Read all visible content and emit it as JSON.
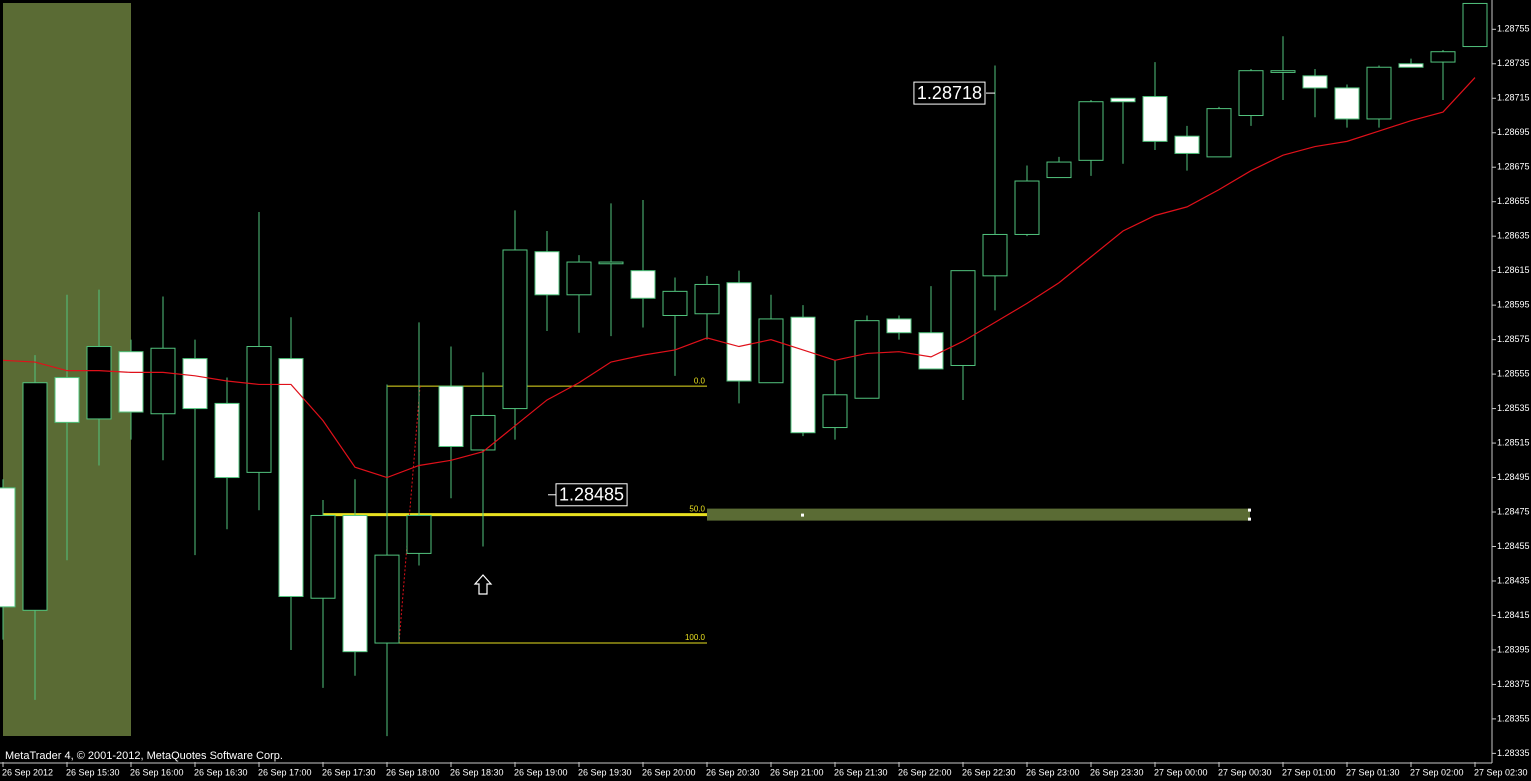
{
  "chart_data": {
    "type": "candlestick",
    "categories": [
      "26 Sep 2012",
      null,
      "26 Sep 15:30",
      null,
      "26 Sep 16:00",
      null,
      "26 Sep 16:30",
      null,
      "26 Sep 17:00",
      null,
      "26 Sep 17:30",
      null,
      "26 Sep 18:00",
      null,
      "26 Sep 18:30",
      null,
      "26 Sep 19:00",
      null,
      "26 Sep 19:30",
      null,
      "26 Sep 20:00",
      null,
      "26 Sep 20:30",
      null,
      "26 Sep 21:00",
      null,
      "26 Sep 21:30",
      null,
      "26 Sep 22:00",
      null,
      "26 Sep 22:30",
      null,
      "26 Sep 23:00",
      null,
      "26 Sep 23:30",
      null,
      "27 Sep 00:00",
      null,
      "27 Sep 00:30",
      null,
      "27 Sep 01:00",
      null,
      "27 Sep 01:30",
      null,
      "27 Sep 02:00",
      null,
      "27 Sep 02:30"
    ],
    "open": [
      1.28489,
      1.28418,
      1.28553,
      1.28529,
      1.28568,
      1.28532,
      1.28564,
      1.28538,
      1.28498,
      1.28564,
      1.28425,
      1.28473,
      1.28399,
      1.28451,
      1.28548,
      1.28511,
      1.28535,
      1.28626,
      1.28601,
      1.28619,
      1.28615,
      1.28589,
      1.2859,
      1.28608,
      1.2855,
      1.28588,
      1.28524,
      1.28541,
      1.28587,
      1.28579,
      1.2856,
      1.28612,
      1.28636,
      1.28669,
      1.28679,
      1.28715,
      1.28716,
      1.28693,
      1.28681,
      1.28705,
      1.2873,
      1.28728,
      1.28721,
      1.28703,
      1.28735,
      1.28736,
      1.28745
    ],
    "high": [
      1.28494,
      1.28566,
      1.28601,
      1.28604,
      1.28575,
      1.286,
      1.28575,
      1.28553,
      1.28649,
      1.28588,
      1.28482,
      1.28494,
      1.28549,
      1.28585,
      1.28571,
      1.28556,
      1.2865,
      1.28638,
      1.28624,
      1.28654,
      1.28656,
      1.28611,
      1.28612,
      1.28615,
      1.28601,
      1.28595,
      1.28563,
      1.28589,
      1.28589,
      1.28606,
      1.28615,
      1.28734,
      1.28676,
      1.28681,
      1.28714,
      1.28715,
      1.28736,
      1.28699,
      1.2871,
      1.28732,
      1.28751,
      1.28732,
      1.28723,
      1.28734,
      1.28738,
      1.28743,
      1.2877
    ],
    "low": [
      1.28401,
      1.28366,
      1.28447,
      1.28502,
      1.28517,
      1.28505,
      1.2845,
      1.28465,
      1.28476,
      1.28395,
      1.28373,
      1.2838,
      1.28345,
      1.28444,
      1.28483,
      1.28455,
      1.28517,
      1.2858,
      1.28579,
      1.28577,
      1.28582,
      1.28554,
      1.28575,
      1.28538,
      1.2855,
      1.28519,
      1.28517,
      1.28541,
      1.28575,
      1.28558,
      1.2854,
      1.28592,
      1.28635,
      1.28669,
      1.2867,
      1.28677,
      1.28685,
      1.28673,
      1.28681,
      1.28699,
      1.28714,
      1.28704,
      1.28698,
      1.28698,
      1.28733,
      1.28714,
      1.28745
    ],
    "close": [
      1.2842,
      1.2855,
      1.28527,
      1.28571,
      1.28533,
      1.2857,
      1.28535,
      1.28495,
      1.28571,
      1.28426,
      1.28473,
      1.28394,
      1.2845,
      1.28473,
      1.28513,
      1.28531,
      1.28627,
      1.28601,
      1.2862,
      1.2862,
      1.28599,
      1.28603,
      1.28607,
      1.28551,
      1.28587,
      1.28521,
      1.28543,
      1.28586,
      1.28579,
      1.28558,
      1.28615,
      1.28636,
      1.28667,
      1.28678,
      1.28713,
      1.28713,
      1.2869,
      1.28683,
      1.28709,
      1.28731,
      1.28731,
      1.28721,
      1.28703,
      1.28733,
      1.28733,
      1.28742,
      1.2877
    ],
    "bull_color": "#000000",
    "bear_color": "#ffffff",
    "wick_color": "#52c47e",
    "moving_average": {
      "color": "#e0101a",
      "values": [
        1.28563,
        1.28562,
        1.28557,
        1.28557,
        1.28556,
        1.28556,
        1.28554,
        1.28551,
        1.28549,
        1.28549,
        1.28528,
        1.28501,
        1.28495,
        1.28502,
        1.28505,
        1.2851,
        1.28525,
        1.2854,
        1.2855,
        1.28562,
        1.28566,
        1.28569,
        1.28576,
        1.28571,
        1.28575,
        1.28569,
        1.28563,
        1.28567,
        1.28568,
        1.28565,
        1.28574,
        1.28585,
        1.28596,
        1.28608,
        1.28623,
        1.28638,
        1.28647,
        1.28652,
        1.28662,
        1.28673,
        1.28682,
        1.28687,
        1.2869,
        1.28696,
        1.28702,
        1.28707,
        1.28727
      ]
    },
    "ylim": [
      1.2833,
      1.28772
    ],
    "yticks": [
      1.28335,
      1.28355,
      1.28375,
      1.28395,
      1.28415,
      1.28435,
      1.28455,
      1.28475,
      1.28495,
      1.28515,
      1.28535,
      1.28555,
      1.28575,
      1.28595,
      1.28615,
      1.28635,
      1.28655,
      1.28675,
      1.28695,
      1.28715,
      1.28735,
      1.28755
    ],
    "grid": false,
    "fibonacci": {
      "high": 1.28548,
      "low": 1.28399,
      "color": "#e8e020",
      "levels": [
        {
          "value": 0,
          "label": "0.0"
        },
        {
          "value": 50,
          "label": "50.0"
        },
        {
          "value": 100,
          "label": "100.0"
        }
      ]
    },
    "price_labels": [
      1.28718,
      1.28485
    ]
  },
  "footer": "MetaTrader 4, © 2001-2012, MetaQuotes Software Corp."
}
